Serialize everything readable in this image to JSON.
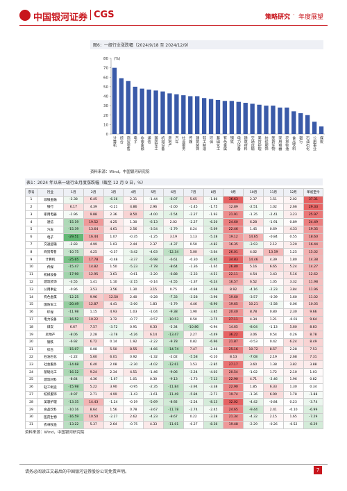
{
  "header": {
    "logo": "中国银河证券",
    "logo_en": "CGS",
    "section": "策略研究",
    "subsection": "年度展望"
  },
  "chart_data": {
    "type": "bar",
    "title": "图6：一级行业涨跌幅（2024/9/18 至 2024/12/9）",
    "ylabel": "(%)",
    "categories": [
      "计算机",
      "综合",
      "商贸零售",
      "电子",
      "非银金融",
      "通信",
      "国防军工",
      "机械设备",
      "房地产",
      "汽车",
      "社会服务",
      "传媒",
      "建筑装饰",
      "轻工制造",
      "环保",
      "基础化工",
      "有色金属",
      "钢铁",
      "电力设备",
      "建筑材料",
      "交通运输",
      "美容护理",
      "纺织服饰",
      "医药生物",
      "家用电器",
      "农林牧渔",
      "食品饮料",
      "银行",
      "石油石化",
      "公用事业",
      "煤炭"
    ],
    "values": [
      70,
      59,
      56,
      50,
      48,
      47,
      46,
      45,
      43,
      42,
      41,
      40,
      40,
      38,
      37,
      36,
      35,
      35,
      34,
      33,
      32,
      31,
      30,
      30,
      28,
      28,
      24,
      22,
      20,
      13,
      8
    ],
    "color": "#3a5aa8",
    "ylim": [
      0,
      80
    ],
    "yticks": [
      0,
      10,
      20,
      30,
      40,
      50,
      60,
      70,
      80
    ]
  },
  "source1": "资料来源：Wind，中国银河研究院",
  "table": {
    "title": "表1：2024 年以来一级行业月度涨跌幅（截至 12 月 9 日，%）",
    "columns": [
      "序号",
      "行业",
      "1月",
      "2月",
      "3月",
      "4月",
      "5月",
      "6月",
      "7月",
      "8月",
      "9月",
      "10月",
      "11月",
      "12月",
      "年初至今"
    ],
    "rows": [
      [
        1,
        "非银金融",
        "-3.38",
        "6.45",
        "-6.16",
        "2.31",
        "-1.44",
        "-6.07",
        "5.65",
        "-1.86",
        "36.63",
        "2.37",
        "1.51",
        "2.02",
        "37.31"
      ],
      [
        2,
        "银行",
        "6.17",
        "4.39",
        "-0.21",
        "4.86",
        "2.96",
        "-2.00",
        "-1.45",
        "-1.75",
        "12.89",
        "-2.51",
        "1.02",
        "2.66",
        "29.33"
      ],
      [
        3,
        "家用电器",
        "-1.96",
        "9.88",
        "2.36",
        "8.50",
        "-4.00",
        "-5.54",
        "-2.27",
        "-1.93",
        "21.91",
        "-1.35",
        "-2.41",
        "3.23",
        "25.97"
      ],
      [
        4,
        "通信",
        "-15.19",
        "19.52",
        "4.25",
        "1.30",
        "-6.13",
        "2.02",
        "-2.27",
        "-6.20",
        "24.60",
        "6.28",
        "-1.91",
        "0.89",
        "24.49"
      ],
      [
        5,
        "汽车",
        "-15.39",
        "13.64",
        "4.61",
        "2.56",
        "-3.54",
        "-2.79",
        "0.24",
        "-5.69",
        "22.46",
        "1.45",
        "0.69",
        "4.33",
        "19.35"
      ],
      [
        6,
        "电子",
        "-29.51",
        "16.44",
        "1.07",
        "-0.35",
        "-1.25",
        "3.19",
        "1.13",
        "-5.28",
        "19.12",
        "14.65",
        "-0.84",
        "0.55",
        "18.60"
      ],
      [
        7,
        "交通运输",
        "-2.83",
        "4.99",
        "1.03",
        "2.44",
        "2.37",
        "-4.37",
        "0.50",
        "-4.82",
        "16.35",
        "-3.93",
        "2.12",
        "3.20",
        "16.44"
      ],
      [
        8,
        "商贸零售",
        "-10.75",
        "4.25",
        "-0.37",
        "-3.42",
        "-4.63",
        "-12.34",
        "5.00",
        "-3.64",
        "26.01",
        "4.02",
        "13.59",
        "1.25",
        "15.02"
      ],
      [
        9,
        "计算机",
        "-25.65",
        "17.78",
        "-0.48",
        "-3.37",
        "-6.98",
        "-6.61",
        "-0.30",
        "-6.95",
        "34.83",
        "14.46",
        "4.39",
        "1.80",
        "14.38"
      ],
      [
        10,
        "传媒",
        "-15.47",
        "14.82",
        "1.50",
        "-5.23",
        "-7.78",
        "-8.64",
        "-1.36",
        "-1.65",
        "26.80",
        "5.16",
        "6.65",
        "5.24",
        "14.27"
      ],
      [
        11,
        "机械设备",
        "-17.90",
        "12.95",
        "3.61",
        "-0.61",
        "-2.20",
        "-6.88",
        "-2.33",
        "-4.51",
        "22.11",
        "4.54",
        "3.43",
        "5.16",
        "12.62"
      ],
      [
        12,
        "建筑装饰",
        "-3.55",
        "1.41",
        "1.10",
        "-2.15",
        "-0.14",
        "-4.55",
        "-1.37",
        "-6.24",
        "16.57",
        "6.52",
        "1.05",
        "3.32",
        "11.98"
      ],
      [
        13,
        "公用事业",
        "-0.96",
        "3.53",
        "3.56",
        "1.30",
        "3.15",
        "0.75",
        "-0.84",
        "-4.68",
        "8.92",
        "-4.16",
        "-2.23",
        "3.84",
        "11.96"
      ],
      [
        14,
        "有色金属",
        "-12.25",
        "9.96",
        "12.50",
        "2.40",
        "-0.28",
        "-7.33",
        "-3.58",
        "-3.96",
        "19.60",
        "-3.57",
        "-0.39",
        "1.60",
        "11.02"
      ],
      [
        15,
        "国防军工",
        "-20.49",
        "12.87",
        "4.41",
        "-2.00",
        "1.83",
        "-3.79",
        "4.46",
        "-8.90",
        "19.65",
        "10.21",
        "-2.58",
        "0.06",
        "10.05"
      ],
      [
        16,
        "环保",
        "-11.98",
        "1.15",
        "4.93",
        "1.03",
        "-1.04",
        "-9.38",
        "1.90",
        "-3.85",
        "20.40",
        "8.78",
        "0.80",
        "2.30",
        "9.66"
      ],
      [
        17,
        "电力设备",
        "-16.52",
        "10.22",
        "3.72",
        "-0.77",
        "-0.57",
        "-10.53",
        "0.50",
        "-3.75",
        "27.11",
        "4.34",
        "1.21",
        "-0.01",
        "9.64"
      ],
      [
        18,
        "煤炭",
        "6.67",
        "7.57",
        "-3.72",
        "0.91",
        "6.33",
        "-5.34",
        "-10.86",
        "-0.94",
        "14.65",
        "-8.04",
        "-1.13",
        "5.60",
        "8.83"
      ],
      [
        19,
        "房地产",
        "-8.06",
        "2.28",
        "-3.78",
        "-4.26",
        "6.14",
        "-13.47",
        "2.27",
        "-4.49",
        "36.22",
        "3.06",
        "0.54",
        "0.26",
        "8.78"
      ],
      [
        20,
        "钢铁",
        "-6.92",
        "6.72",
        "0.14",
        "1.92",
        "-2.22",
        "-9.78",
        "0.82",
        "-6.96",
        "21.87",
        "-0.53",
        "0.42",
        "6.24",
        "8.49"
      ],
      [
        21,
        "综合",
        "-15.07",
        "0.08",
        "5.50",
        "8.55",
        "-4.66",
        "-14.74",
        "7.47",
        "-2.46",
        "25.16",
        "10.72",
        "8.57",
        "2.28",
        "7.53"
      ],
      [
        22,
        "石油石化",
        "-1.22",
        "5.60",
        "6.01",
        "0.92",
        "-1.32",
        "-2.02",
        "-5.58",
        "-0.10",
        "8.13",
        "-7.08",
        "2.19",
        "2.68",
        "7.31"
      ],
      [
        23,
        "社会服务",
        "-14.68",
        "6.40",
        "2.08",
        "-2.30",
        "-4.02",
        "-12.61",
        "1.53",
        "-2.85",
        "27.17",
        "3.60",
        "1.38",
        "3.82",
        "3.88"
      ],
      [
        24,
        "基础化工",
        "-16.12",
        "9.24",
        "2.34",
        "4.51",
        "-1.46",
        "-9.06",
        "-3.24",
        "-4.03",
        "20.54",
        "-1.02",
        "1.72",
        "2.10",
        "1.03"
      ],
      [
        25,
        "建筑材料",
        "-8.64",
        "4.36",
        "-1.67",
        "1.01",
        "0.30",
        "-9.13",
        "-1.73",
        "-7.13",
        "22.90",
        "4.71",
        "-2.46",
        "1.96",
        "0.82"
      ],
      [
        26,
        "轻工制造",
        "-15.98",
        "5.22",
        "3.90",
        "-0.95",
        "-2.35",
        "-11.84",
        "-3.94",
        "-3.38",
        "22.90",
        "1.85",
        "6.33",
        "1.30",
        "0.34"
      ],
      [
        27,
        "纺织服饰",
        "-9.97",
        "2.71",
        "4.99",
        "-1.43",
        "-1.61",
        "-11.49",
        "-5.84",
        "-2.71",
        "19.74",
        "-1.36",
        "6.90",
        "1.78",
        "-1.88"
      ],
      [
        28,
        "美容护理",
        "-13.35",
        "14.43",
        "-1.24",
        "-0.19",
        "-5.69",
        "-8.92",
        "-2.54",
        "-8.13",
        "32.02",
        "-4.42",
        "-0.84",
        "0.23",
        "-3.74"
      ],
      [
        29,
        "食品饮料",
        "-10.16",
        "8.64",
        "1.56",
        "0.78",
        "-3.67",
        "-11.78",
        "-2.74",
        "-2.45",
        "24.65",
        "-9.44",
        "2.41",
        "-0.10",
        "-6.99"
      ],
      [
        30,
        "医药生物",
        "-16.59",
        "10.50",
        "-2.27",
        "2.62",
        "-4.23",
        "-8.67",
        "0.22",
        "-3.28",
        "21.34",
        "-4.32",
        "2.15",
        "1.65",
        "-7.29"
      ],
      [
        31,
        "农林牧渔",
        "-13.22",
        "5.37",
        "2.64",
        "-0.75",
        "4.33",
        "-11.01",
        "-0.27",
        "-8.36",
        "19.48",
        "-2.29",
        "-0.26",
        "-0.52",
        "-8.29"
      ]
    ]
  },
  "source2": "资料来源：Wind，中国银河研究院",
  "footer": {
    "disclaimer": "请务必阅读正文最后的中国银河证券股份公司免责声明。",
    "page": "7"
  }
}
